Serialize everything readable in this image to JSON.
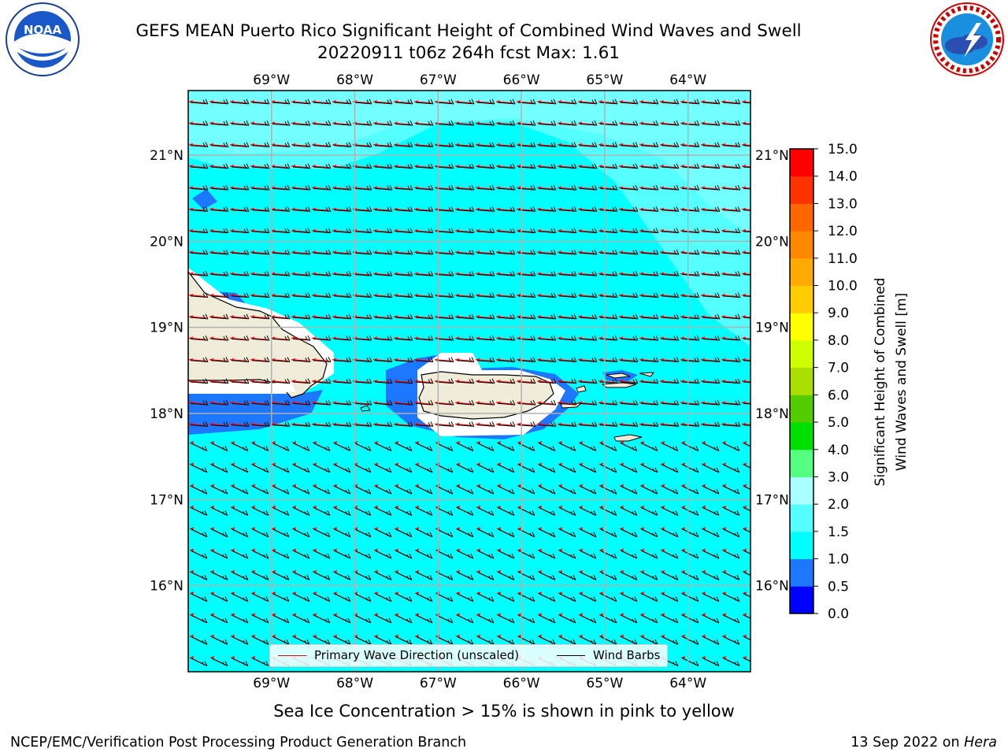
{
  "title": {
    "line1": "GEFS MEAN Puerto Rico Significant Height of Combined Wind Waves and Swell",
    "line2": "20220911 t06z 264h fcst   Max: 1.61"
  },
  "logos": {
    "left": "noaa-logo",
    "left_text": "NOAA",
    "right": "nws-logo"
  },
  "map": {
    "lon_range": [
      -70.0,
      -63.25
    ],
    "lat_range": [
      15.0,
      21.75
    ],
    "lon_ticks": [
      "69°W",
      "68°W",
      "67°W",
      "66°W",
      "65°W",
      "64°W"
    ],
    "lat_ticks": [
      "16°N",
      "17°N",
      "18°N",
      "19°N",
      "20°N",
      "21°N"
    ],
    "background_color": "#00ffff",
    "gridlines": true,
    "regions": {
      "hispaniola": "land",
      "puerto_rico": "land",
      "virgin_islands": "land",
      "vieques_culebra": "land"
    }
  },
  "colorbar": {
    "label": "Significant Height of Combined Wind Waves and Swell [m]",
    "label_line1": "Significant Height of Combined",
    "label_line2": "Wind Waves and Swell [m]",
    "ticks": [
      "0.0",
      "0.5",
      "1.0",
      "1.5",
      "2.0",
      "3.0",
      "4.0",
      "5.0",
      "6.0",
      "7.0",
      "8.0",
      "9.0",
      "10.0",
      "11.0",
      "12.0",
      "13.0",
      "14.0",
      "15.0"
    ],
    "colors": [
      "#0000ff",
      "#1e78ff",
      "#00ffff",
      "#55ffff",
      "#aaffff",
      "#55ff80",
      "#00e000",
      "#55cc00",
      "#aadd00",
      "#ccff00",
      "#ffff00",
      "#ffcc00",
      "#ffaa00",
      "#ff8800",
      "#ff6600",
      "#ff3300",
      "#ff0000"
    ]
  },
  "legend": {
    "wave_label": "Primary Wave Direction (unscaled)",
    "barb_label": "Wind Barbs",
    "wave_color": "#ff0000",
    "barb_color": "#000000"
  },
  "caption": "Sea Ice Concentration > 15% is shown in pink to yellow",
  "footer": {
    "left": "NCEP/EMC/Verification Post Processing Product Generation Branch",
    "right_date": "13 Sep 2022 on ",
    "right_host": "Hera"
  }
}
